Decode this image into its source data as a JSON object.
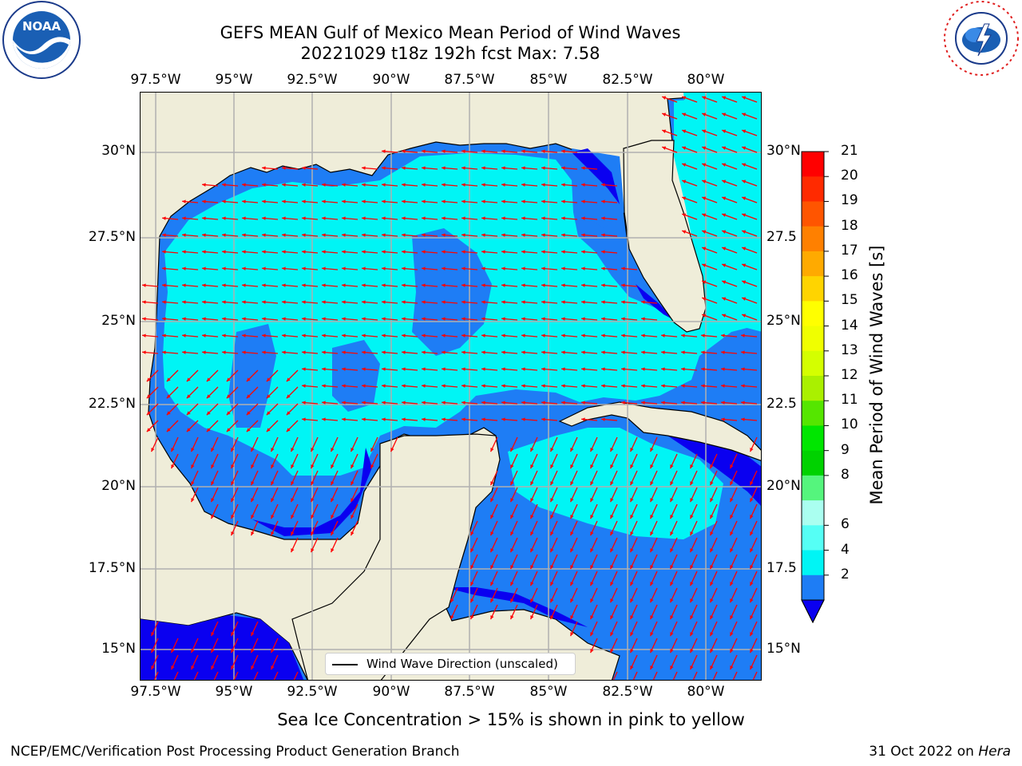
{
  "title": {
    "line1": "GEFS MEAN Gulf of Mexico Mean Period of Wind Waves",
    "line2": "20221029 t18z 192h fcst   Max: 7.58"
  },
  "map": {
    "lon_labels": [
      "97.5°W",
      "95°W",
      "92.5°W",
      "90°W",
      "87.5°W",
      "85°W",
      "82.5°W",
      "80°W"
    ],
    "lat_labels_left": [
      "30°N",
      "27.5°N",
      "25°N",
      "22.5°N",
      "20°N",
      "17.5°N",
      "15°N"
    ],
    "lat_labels_right": [
      "30°N",
      "27.5",
      "25°N",
      "22.5",
      "20°N",
      "17.5",
      "15°N"
    ],
    "legend_label": "Wind Wave Direction (unscaled)",
    "colors": {
      "land": "#efedd9",
      "ocean_2_4": "#1e7df5",
      "ocean_0_2": "#0a00f0",
      "ocean_4_6": "#00f5f5",
      "arrow": "#ff0000",
      "grid": "#b0b0b0"
    }
  },
  "colorbar": {
    "label": "Mean Period of Wind Waves [s]",
    "ticks": [
      "21",
      "20",
      "19",
      "18",
      "17",
      "16",
      "15",
      "14",
      "13",
      "12",
      "11",
      "10",
      "9",
      "8",
      "6",
      "4",
      "2"
    ],
    "colors": [
      "#ff0000",
      "#ff2a00",
      "#ff5500",
      "#ff8000",
      "#ffaa00",
      "#ffd400",
      "#ffff00",
      "#f0ff00",
      "#d4ff00",
      "#aaf000",
      "#55e600",
      "#00e600",
      "#00d200",
      "#55f57d",
      "#aafff0",
      "#55fff5",
      "#00f5f5",
      "#1e7df5"
    ],
    "extend_color": "#0a00f0"
  },
  "notes": {
    "ice": "Sea Ice Concentration > 15% is shown in pink to yellow"
  },
  "footer": {
    "left": "NCEP/EMC/Verification Post Processing Product Generation Branch",
    "right_prefix": "31 Oct 2022 on ",
    "right_host": "Hera"
  },
  "logos": {
    "left": "NOAA",
    "left_ring": "NATIONAL OCEANIC AND ATMOSPHERIC ADMINISTRATION · U.S. DEPARTMENT OF COMMERCE",
    "right_ring": "NATIONAL WEATHER SERVICE"
  }
}
